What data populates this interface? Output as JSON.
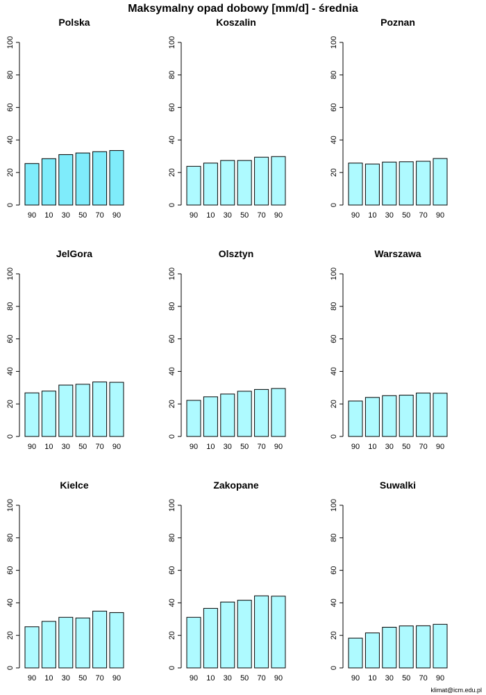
{
  "page": {
    "title": "Maksymalny opad dobowy [mm/d] - średnia",
    "credit": "klimat@icm.edu.pl"
  },
  "colors": {
    "bar_fill": "#aefaff",
    "bar_fill_highlight": "#7fecfb",
    "bar_stroke": "#000000",
    "axis": "#000000"
  },
  "chart_data": [
    {
      "type": "bar",
      "title": "Polska",
      "categories": [
        "90",
        "10",
        "30",
        "50",
        "70",
        "90"
      ],
      "values": [
        25.5,
        28.5,
        31,
        32,
        32.8,
        33.5
      ],
      "ylim": [
        0,
        100
      ],
      "yticks": [
        0,
        20,
        40,
        60,
        80,
        100
      ],
      "highlight": true
    },
    {
      "type": "bar",
      "title": "Koszalin",
      "categories": [
        "90",
        "10",
        "30",
        "50",
        "70",
        "90"
      ],
      "values": [
        23.8,
        25.8,
        27.4,
        27.4,
        29.4,
        29.8
      ],
      "ylim": [
        0,
        100
      ],
      "yticks": [
        0,
        20,
        40,
        60,
        80,
        100
      ]
    },
    {
      "type": "bar",
      "title": "Poznan",
      "categories": [
        "90",
        "10",
        "30",
        "50",
        "70",
        "90"
      ],
      "values": [
        25.8,
        25.2,
        26.4,
        26.6,
        26.9,
        28.6
      ],
      "ylim": [
        0,
        100
      ],
      "yticks": [
        0,
        20,
        40,
        60,
        80,
        100
      ]
    },
    {
      "type": "bar",
      "title": "JelGora",
      "categories": [
        "90",
        "10",
        "30",
        "50",
        "70",
        "90"
      ],
      "values": [
        26.8,
        27.9,
        31.6,
        32.1,
        33.5,
        33.3
      ],
      "ylim": [
        0,
        100
      ],
      "yticks": [
        0,
        20,
        40,
        60,
        80,
        100
      ]
    },
    {
      "type": "bar",
      "title": "Olsztyn",
      "categories": [
        "90",
        "10",
        "30",
        "50",
        "70",
        "90"
      ],
      "values": [
        22.2,
        24.4,
        26.1,
        27.8,
        28.9,
        29.5
      ],
      "ylim": [
        0,
        100
      ],
      "yticks": [
        0,
        20,
        40,
        60,
        80,
        100
      ]
    },
    {
      "type": "bar",
      "title": "Warszawa",
      "categories": [
        "90",
        "10",
        "30",
        "50",
        "70",
        "90"
      ],
      "values": [
        21.8,
        24.0,
        25.1,
        25.4,
        26.7,
        26.6
      ],
      "ylim": [
        0,
        100
      ],
      "yticks": [
        0,
        20,
        40,
        60,
        80,
        100
      ]
    },
    {
      "type": "bar",
      "title": "Kielce",
      "categories": [
        "90",
        "10",
        "30",
        "50",
        "70",
        "90"
      ],
      "values": [
        25.3,
        28.6,
        31.1,
        30.7,
        34.9,
        34.0
      ],
      "ylim": [
        0,
        100
      ],
      "yticks": [
        0,
        20,
        40,
        60,
        80,
        100
      ]
    },
    {
      "type": "bar",
      "title": "Zakopane",
      "categories": [
        "90",
        "10",
        "30",
        "50",
        "70",
        "90"
      ],
      "values": [
        31.1,
        36.6,
        40.5,
        41.6,
        44.3,
        44.1
      ],
      "ylim": [
        0,
        100
      ],
      "yticks": [
        0,
        20,
        40,
        60,
        80,
        100
      ]
    },
    {
      "type": "bar",
      "title": "Suwalki",
      "categories": [
        "90",
        "10",
        "30",
        "50",
        "70",
        "90"
      ],
      "values": [
        18.3,
        21.5,
        25.0,
        25.8,
        25.9,
        26.8
      ],
      "ylim": [
        0,
        100
      ],
      "yticks": [
        0,
        20,
        40,
        60,
        80,
        100
      ]
    }
  ]
}
